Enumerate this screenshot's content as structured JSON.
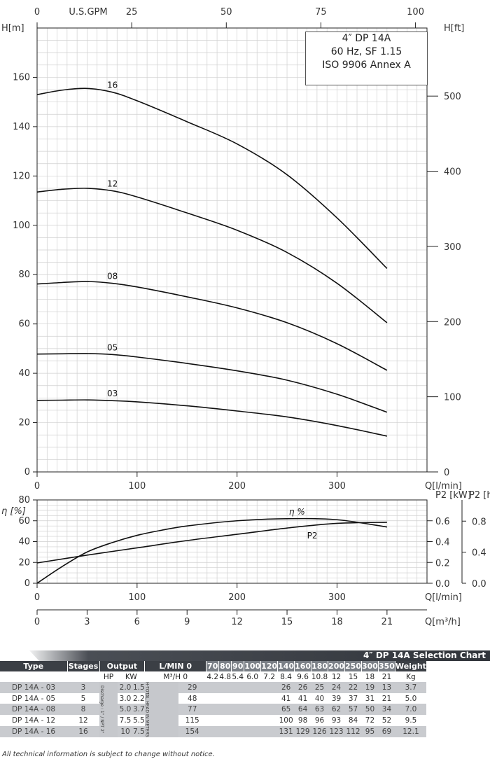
{
  "title_box": {
    "line1": "4″ DP 14A",
    "line2": "60 Hz, SF 1.15",
    "line3": "ISO 9906 Annex A"
  },
  "chart_data": [
    {
      "type": "line",
      "name": "head-curves",
      "top_axis_label": "U.S.GPM",
      "top_ticks": [
        0,
        25,
        50,
        75,
        100
      ],
      "ylabel": "H[m]",
      "ylabel_right": "H[ft]",
      "xlabel": "Q[l/min]",
      "xlim": [
        0,
        390
      ],
      "ylim": [
        0,
        180
      ],
      "x_ticks": [
        0,
        100,
        200,
        300
      ],
      "y_ticks": [
        0,
        20,
        40,
        60,
        80,
        100,
        120,
        140,
        160
      ],
      "y_right_ticks": [
        0,
        100,
        200,
        300,
        400,
        500
      ],
      "grid": true,
      "series": [
        {
          "name": "16",
          "x": [
            0,
            25,
            50,
            75,
            100,
            150,
            200,
            250,
            300,
            350
          ],
          "y": [
            153,
            154.8,
            155.5,
            154,
            150.5,
            142,
            133,
            120.5,
            103,
            82.5
          ]
        },
        {
          "name": "12",
          "x": [
            0,
            25,
            50,
            75,
            100,
            150,
            200,
            250,
            300,
            350
          ],
          "y": [
            113.5,
            114.6,
            115,
            114,
            111.5,
            105,
            98,
            89,
            76.5,
            60.5
          ]
        },
        {
          "name": "08",
          "x": [
            0,
            25,
            50,
            75,
            100,
            150,
            200,
            250,
            300,
            350
          ],
          "y": [
            76.2,
            76.8,
            77.2,
            76.5,
            75,
            71,
            66.5,
            60.5,
            52,
            41.2
          ]
        },
        {
          "name": "05",
          "x": [
            0,
            25,
            50,
            75,
            100,
            150,
            200,
            250,
            300,
            350
          ],
          "y": [
            47.8,
            47.9,
            48,
            47.6,
            46.6,
            44,
            41,
            37.2,
            31.5,
            24.2
          ]
        },
        {
          "name": "03",
          "x": [
            0,
            25,
            50,
            75,
            100,
            150,
            200,
            250,
            300,
            350
          ],
          "y": [
            29,
            29.1,
            29.2,
            28.9,
            28.4,
            26.8,
            24.7,
            22.3,
            18.8,
            14.5
          ]
        }
      ]
    },
    {
      "type": "line",
      "name": "efficiency-power",
      "ylabel": "η [%]",
      "ylabel_right_1": "P2 [kW]",
      "ylabel_right_2": "P2 [hp]",
      "xlabel": "Q[l/min]",
      "xlabel2": "Q[m³/h]",
      "xlim": [
        0,
        390
      ],
      "ylim": [
        0,
        80
      ],
      "x_ticks": [
        0,
        100,
        200,
        300
      ],
      "x2_ticks": [
        0,
        3,
        6,
        9,
        12,
        15,
        18,
        21
      ],
      "y_ticks": [
        0,
        20,
        40,
        60,
        80
      ],
      "kw_ticks": [
        "0.0",
        "0.2",
        "0.4",
        "0.6"
      ],
      "hp_ticks": [
        "0.0",
        "0.4",
        "0.8"
      ],
      "grid": true,
      "series": [
        {
          "name": "η %",
          "x": [
            0,
            25,
            50,
            75,
            100,
            125,
            150,
            200,
            250,
            300,
            350
          ],
          "y": [
            0,
            16,
            30,
            39,
            46,
            51,
            55,
            60,
            62,
            61,
            54
          ]
        },
        {
          "name": "P2",
          "x": [
            0,
            50,
            100,
            150,
            200,
            250,
            300,
            350
          ],
          "y": [
            19.5,
            27,
            34,
            41,
            47,
            53,
            57.5,
            58.5
          ]
        }
      ]
    }
  ],
  "table": {
    "title": "4″ DP 14A Selection Chart",
    "headers": {
      "type": "Type",
      "stages": "Stages",
      "output": "Output",
      "lmin": "L/MIN",
      "weight": "Weight"
    },
    "units": {
      "hp": "HP",
      "kw": "KW",
      "m3h": "M³/H",
      "kg": "Kg"
    },
    "flow_lmin": [
      "0",
      "70",
      "80",
      "90",
      "100",
      "120",
      "140",
      "160",
      "180",
      "200",
      "250",
      "300",
      "350"
    ],
    "flow_m3h": [
      "0",
      "4.2",
      "4.8",
      "5.4",
      "6.0",
      "7.2",
      "8.4",
      "9.6",
      "10.8",
      "12",
      "15",
      "18",
      "21"
    ],
    "vertical_discharge": "Discharge : 1\" / NPT 2\"",
    "vertical_head": "H-TOTAL HEAD IN METERS",
    "rows": [
      {
        "type": "DP 14A - 03",
        "stages": "3",
        "hp": "2.0",
        "kw": "1.5",
        "heads": [
          "29",
          "",
          "",
          "",
          "",
          "",
          "26",
          "26",
          "25",
          "24",
          "22",
          "19",
          "13"
        ],
        "weight": "3.7"
      },
      {
        "type": "DP 14A - 05",
        "stages": "5",
        "hp": "3.0",
        "kw": "2.2",
        "heads": [
          "48",
          "",
          "",
          "",
          "",
          "",
          "41",
          "41",
          "40",
          "39",
          "37",
          "31",
          "21"
        ],
        "weight": "5.0"
      },
      {
        "type": "DP 14A - 08",
        "stages": "8",
        "hp": "5.0",
        "kw": "3.7",
        "heads": [
          "77",
          "",
          "",
          "",
          "",
          "",
          "65",
          "64",
          "63",
          "62",
          "57",
          "50",
          "34"
        ],
        "weight": "7.0"
      },
      {
        "type": "DP 14A - 12",
        "stages": "12",
        "hp": "7.5",
        "kw": "5.5",
        "heads": [
          "115",
          "",
          "",
          "",
          "",
          "",
          "100",
          "98",
          "96",
          "93",
          "84",
          "72",
          "52"
        ],
        "weight": "9.5"
      },
      {
        "type": "DP 14A - 16",
        "stages": "16",
        "hp": "10",
        "kw": "7.5",
        "heads": [
          "154",
          "",
          "",
          "",
          "",
          "",
          "131",
          "129",
          "126",
          "123",
          "112",
          "95",
          "69"
        ],
        "weight": "12.1"
      }
    ]
  },
  "footnote": "All technical information is subject to change without notice."
}
